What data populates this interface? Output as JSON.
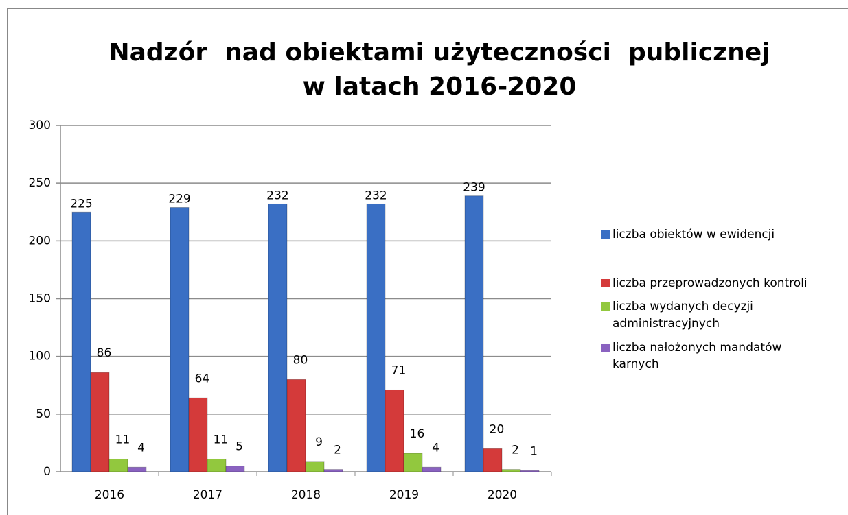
{
  "chart_data": {
    "type": "bar",
    "title": [
      "Nadzór  nad obiektami użyteczności  publicznej",
      "w latach 2016-2020"
    ],
    "categories": [
      "2016",
      "2017",
      "2018",
      "2019",
      "2020"
    ],
    "series": [
      {
        "name": "liczba obiektów w ewidencji",
        "color": "#3a6fc4",
        "values": [
          225,
          229,
          232,
          232,
          239
        ]
      },
      {
        "name": "liczba przeprowadzonych kontroli",
        "color": "#d43a3a",
        "values": [
          86,
          64,
          80,
          71,
          20
        ]
      },
      {
        "name": "liczba wydanych decyzji administracyjnych",
        "color": "#92c83e",
        "values": [
          11,
          11,
          9,
          16,
          2
        ]
      },
      {
        "name": "liczba nałożonych mandatów karnych",
        "color": "#8a62c0",
        "values": [
          4,
          5,
          2,
          4,
          1
        ]
      }
    ],
    "ylim": [
      0,
      300
    ],
    "yticks": [
      0,
      50,
      100,
      150,
      200,
      250,
      300
    ],
    "grid": true,
    "legend": "right"
  }
}
